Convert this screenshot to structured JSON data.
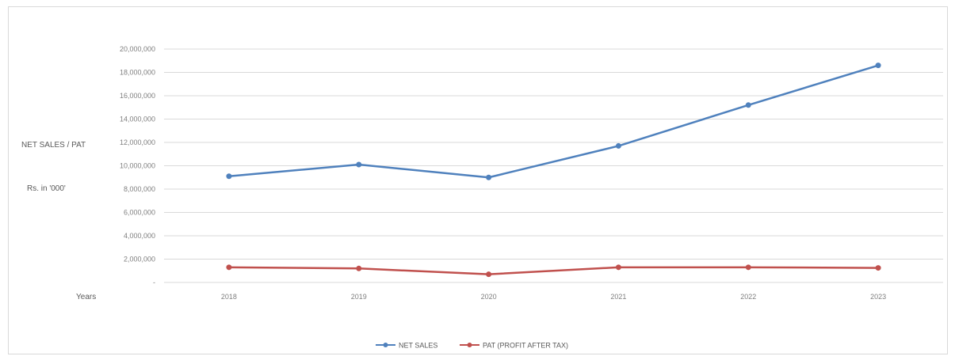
{
  "chart_data": {
    "type": "line",
    "categories": [
      "2018",
      "2019",
      "2020",
      "2021",
      "2022",
      "2023"
    ],
    "series": [
      {
        "name": "NET SALES",
        "color": "#4f81bd",
        "values": [
          9100000,
          10100000,
          9000000,
          11700000,
          15200000,
          18600000
        ]
      },
      {
        "name": "PAT (PROFIT AFTER TAX)",
        "color": "#c0504d",
        "values": [
          1300000,
          1200000,
          700000,
          1300000,
          1300000,
          1250000
        ]
      }
    ],
    "y_ticks": [
      "-",
      "2,000,000",
      "4,000,000",
      "6,000,000",
      "8,000,000",
      "10,000,000",
      "12,000,000",
      "14,000,000",
      "16,000,000",
      "18,000,000",
      "20,000,000"
    ],
    "ylim": [
      0,
      20000000
    ],
    "ylabel_line1": "NET SALES / PAT",
    "ylabel_line2": "Rs. in '000'",
    "xlabel": "Years",
    "grid": true,
    "legend_position": "bottom"
  }
}
